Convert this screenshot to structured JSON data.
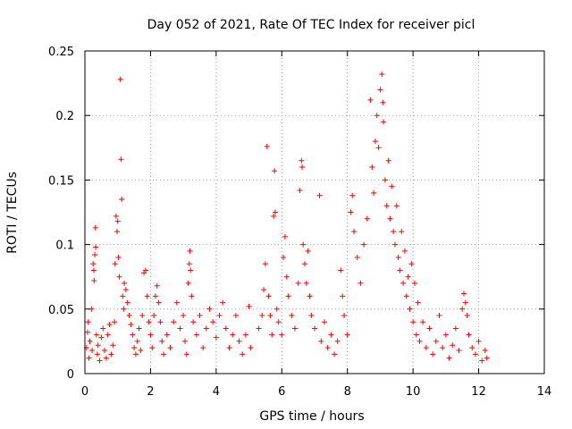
{
  "chart_data": {
    "type": "scatter",
    "title": "Day 052 of 2021, Rate Of TEC Index for receiver picl",
    "xlabel": "GPS time / hours",
    "ylabel": "ROTI / TECUs",
    "xlim": [
      0,
      14
    ],
    "ylim": [
      0,
      0.25
    ],
    "xticks": [
      0,
      2,
      4,
      6,
      8,
      10,
      12,
      14
    ],
    "yticks": [
      0,
      0.05,
      0.1,
      0.15,
      0.2,
      0.25
    ],
    "xtick_labels": [
      "0",
      "2",
      "4",
      "6",
      "8",
      "10",
      "12",
      "14"
    ],
    "ytick_labels": [
      "0",
      "0.05",
      "0.1",
      "0.15",
      "0.2",
      "0.25"
    ],
    "grid": true,
    "marker": "+",
    "color": "#ff0000",
    "series": [
      {
        "name": "ROTI",
        "points": [
          [
            0.05,
            0.02
          ],
          [
            0.08,
            0.032
          ],
          [
            0.1,
            0.04
          ],
          [
            0.12,
            0.012
          ],
          [
            0.15,
            0.025
          ],
          [
            0.2,
            0.05
          ],
          [
            0.22,
            0.018
          ],
          [
            0.25,
            0.085
          ],
          [
            0.27,
            0.08
          ],
          [
            0.28,
            0.072
          ],
          [
            0.3,
            0.092
          ],
          [
            0.32,
            0.113
          ],
          [
            0.33,
            0.098
          ],
          [
            0.35,
            0.03
          ],
          [
            0.38,
            0.015
          ],
          [
            0.4,
            0.022
          ],
          [
            0.45,
            0.01
          ],
          [
            0.5,
            0.028
          ],
          [
            0.55,
            0.035
          ],
          [
            0.6,
            0.018
          ],
          [
            0.65,
            0.012
          ],
          [
            0.7,
            0.03
          ],
          [
            0.75,
            0.038
          ],
          [
            0.8,
            0.015
          ],
          [
            0.85,
            0.022
          ],
          [
            0.9,
            0.04
          ],
          [
            0.92,
            0.085
          ],
          [
            0.95,
            0.122
          ],
          [
            0.98,
            0.11
          ],
          [
            1.0,
            0.118
          ],
          [
            1.02,
            0.09
          ],
          [
            1.05,
            0.075
          ],
          [
            1.08,
            0.228
          ],
          [
            1.1,
            0.166
          ],
          [
            1.12,
            0.135
          ],
          [
            1.15,
            0.06
          ],
          [
            1.18,
            0.05
          ],
          [
            1.2,
            0.07
          ],
          [
            1.25,
            0.065
          ],
          [
            1.3,
            0.055
          ],
          [
            1.35,
            0.045
          ],
          [
            1.4,
            0.038
          ],
          [
            1.45,
            0.03
          ],
          [
            1.5,
            0.02
          ],
          [
            1.55,
            0.015
          ],
          [
            1.6,
            0.025
          ],
          [
            1.65,
            0.035
          ],
          [
            1.7,
            0.018
          ],
          [
            1.75,
            0.045
          ],
          [
            1.8,
            0.078
          ],
          [
            1.85,
            0.08
          ],
          [
            1.9,
            0.06
          ],
          [
            1.95,
            0.04
          ],
          [
            2.0,
            0.03
          ],
          [
            2.05,
            0.02
          ],
          [
            2.1,
            0.045
          ],
          [
            2.15,
            0.06
          ],
          [
            2.2,
            0.068
          ],
          [
            2.25,
            0.055
          ],
          [
            2.3,
            0.04
          ],
          [
            2.35,
            0.025
          ],
          [
            2.4,
            0.015
          ],
          [
            2.5,
            0.03
          ],
          [
            2.6,
            0.02
          ],
          [
            2.7,
            0.04
          ],
          [
            2.8,
            0.055
          ],
          [
            2.9,
            0.035
          ],
          [
            3.0,
            0.045
          ],
          [
            3.05,
            0.025
          ],
          [
            3.1,
            0.015
          ],
          [
            3.15,
            0.07
          ],
          [
            3.18,
            0.085
          ],
          [
            3.2,
            0.095
          ],
          [
            3.22,
            0.08
          ],
          [
            3.25,
            0.06
          ],
          [
            3.3,
            0.04
          ],
          [
            3.4,
            0.03
          ],
          [
            3.5,
            0.045
          ],
          [
            3.6,
            0.02
          ],
          [
            3.7,
            0.035
          ],
          [
            3.8,
            0.05
          ],
          [
            3.9,
            0.04
          ],
          [
            4.0,
            0.028
          ],
          [
            4.1,
            0.045
          ],
          [
            4.2,
            0.055
          ],
          [
            4.3,
            0.035
          ],
          [
            4.4,
            0.02
          ],
          [
            4.5,
            0.03
          ],
          [
            4.6,
            0.045
          ],
          [
            4.7,
            0.025
          ],
          [
            4.8,
            0.015
          ],
          [
            4.9,
            0.03
          ],
          [
            5.0,
            0.052
          ],
          [
            5.05,
            0.02
          ],
          [
            5.3,
            0.035
          ],
          [
            5.4,
            0.045
          ],
          [
            5.45,
            0.065
          ],
          [
            5.5,
            0.085
          ],
          [
            5.55,
            0.176
          ],
          [
            5.6,
            0.06
          ],
          [
            5.65,
            0.045
          ],
          [
            5.7,
            0.03
          ],
          [
            5.75,
            0.122
          ],
          [
            5.78,
            0.157
          ],
          [
            5.8,
            0.125
          ],
          [
            5.85,
            0.05
          ],
          [
            5.9,
            0.04
          ],
          [
            6.0,
            0.03
          ],
          [
            6.05,
            0.09
          ],
          [
            6.1,
            0.106
          ],
          [
            6.15,
            0.075
          ],
          [
            6.2,
            0.06
          ],
          [
            6.3,
            0.045
          ],
          [
            6.4,
            0.035
          ],
          [
            6.5,
            0.07
          ],
          [
            6.55,
            0.142
          ],
          [
            6.6,
            0.165
          ],
          [
            6.62,
            0.16
          ],
          [
            6.65,
            0.1
          ],
          [
            6.7,
            0.085
          ],
          [
            6.75,
            0.07
          ],
          [
            6.8,
            0.095
          ],
          [
            6.85,
            0.06
          ],
          [
            6.9,
            0.045
          ],
          [
            7.0,
            0.035
          ],
          [
            7.15,
            0.138
          ],
          [
            7.2,
            0.025
          ],
          [
            7.3,
            0.04
          ],
          [
            7.4,
            0.02
          ],
          [
            7.5,
            0.03
          ],
          [
            7.6,
            0.015
          ],
          [
            7.7,
            0.025
          ],
          [
            7.8,
            0.08
          ],
          [
            7.85,
            0.06
          ],
          [
            7.9,
            0.045
          ],
          [
            8.0,
            0.03
          ],
          [
            8.1,
            0.125
          ],
          [
            8.15,
            0.138
          ],
          [
            8.2,
            0.11
          ],
          [
            8.3,
            0.09
          ],
          [
            8.4,
            0.07
          ],
          [
            8.5,
            0.1
          ],
          [
            8.6,
            0.12
          ],
          [
            8.7,
            0.212
          ],
          [
            8.75,
            0.16
          ],
          [
            8.8,
            0.14
          ],
          [
            8.85,
            0.18
          ],
          [
            8.9,
            0.2
          ],
          [
            8.95,
            0.175
          ],
          [
            9.0,
            0.22
          ],
          [
            9.05,
            0.232
          ],
          [
            9.08,
            0.21
          ],
          [
            9.1,
            0.195
          ],
          [
            9.15,
            0.15
          ],
          [
            9.2,
            0.13
          ],
          [
            9.25,
            0.165
          ],
          [
            9.3,
            0.12
          ],
          [
            9.35,
            0.145
          ],
          [
            9.4,
            0.11
          ],
          [
            9.45,
            0.1
          ],
          [
            9.5,
            0.13
          ],
          [
            9.55,
            0.09
          ],
          [
            9.6,
            0.08
          ],
          [
            9.65,
            0.11
          ],
          [
            9.7,
            0.07
          ],
          [
            9.75,
            0.095
          ],
          [
            9.8,
            0.06
          ],
          [
            9.85,
            0.075
          ],
          [
            9.9,
            0.05
          ],
          [
            9.95,
            0.085
          ],
          [
            10.0,
            0.04
          ],
          [
            10.05,
            0.07
          ],
          [
            10.1,
            0.03
          ],
          [
            10.15,
            0.055
          ],
          [
            10.2,
            0.025
          ],
          [
            10.3,
            0.04
          ],
          [
            10.4,
            0.02
          ],
          [
            10.5,
            0.035
          ],
          [
            10.6,
            0.015
          ],
          [
            10.7,
            0.025
          ],
          [
            10.8,
            0.045
          ],
          [
            10.9,
            0.02
          ],
          [
            11.0,
            0.03
          ],
          [
            11.1,
            0.012
          ],
          [
            11.2,
            0.022
          ],
          [
            11.3,
            0.035
          ],
          [
            11.4,
            0.018
          ],
          [
            11.5,
            0.05
          ],
          [
            11.55,
            0.062
          ],
          [
            11.6,
            0.055
          ],
          [
            11.65,
            0.045
          ],
          [
            11.7,
            0.03
          ],
          [
            11.8,
            0.02
          ],
          [
            11.9,
            0.015
          ],
          [
            12.0,
            0.025
          ],
          [
            12.1,
            0.01
          ],
          [
            12.2,
            0.018
          ],
          [
            12.25,
            0.012
          ]
        ]
      }
    ]
  }
}
